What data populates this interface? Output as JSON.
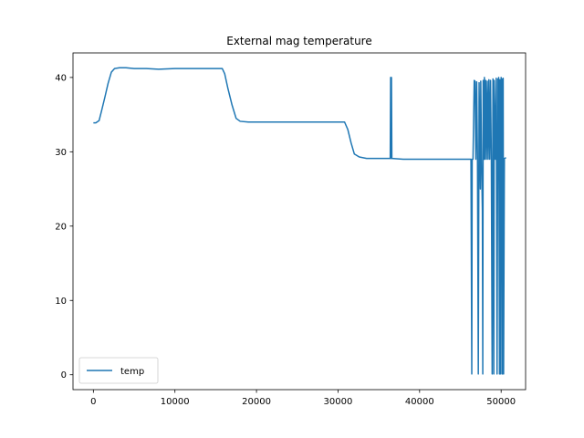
{
  "chart_data": {
    "type": "line",
    "title": "External mag temperature",
    "xlabel": "",
    "ylabel": "",
    "xlim": [
      -2500,
      53000
    ],
    "ylim": [
      -2,
      43.3
    ],
    "xticks": [
      0,
      10000,
      20000,
      30000,
      40000,
      50000
    ],
    "xtick_labels": [
      "0",
      "10000",
      "20000",
      "30000",
      "40000",
      "50000"
    ],
    "yticks": [
      0,
      10,
      20,
      30,
      40
    ],
    "ytick_labels": [
      "0",
      "10",
      "20",
      "30",
      "40"
    ],
    "grid": false,
    "legend": {
      "position": "lower-left",
      "entries": [
        "temp"
      ]
    },
    "series": [
      {
        "name": "temp",
        "color": "#1f77b4",
        "x": [
          0,
          300,
          700,
          1000,
          1400,
          1800,
          2200,
          2600,
          3200,
          4000,
          5000,
          6500,
          8000,
          10000,
          12000,
          14000,
          15800,
          16100,
          16500,
          17000,
          17500,
          18000,
          19000,
          20000,
          22000,
          25000,
          28000,
          30000,
          30800,
          31200,
          31600,
          32000,
          32600,
          33500,
          35000,
          36400,
          36450,
          36500,
          36550,
          36600,
          38000,
          40000,
          42000,
          44000,
          46000,
          46300,
          46400,
          46450,
          46550,
          46700,
          46800,
          46900,
          47000,
          47100,
          47200,
          47300,
          47400,
          47450,
          47500,
          47600,
          47700,
          47750,
          47800,
          47900,
          47950,
          48000,
          48100,
          48200,
          48300,
          48400,
          48500,
          48600,
          48700,
          48800,
          48900,
          49000,
          49050,
          49100,
          49150,
          49300,
          49400,
          49500,
          49600,
          49650,
          49700,
          49800,
          49850,
          49900,
          49950,
          50000,
          50050,
          50100,
          50150,
          50200,
          50250,
          50300,
          50400,
          50600
        ],
        "y": [
          33.9,
          33.9,
          34.2,
          35.5,
          37.3,
          39.2,
          40.7,
          41.2,
          41.3,
          41.3,
          41.2,
          41.2,
          41.1,
          41.2,
          41.2,
          41.2,
          41.2,
          40.5,
          38.5,
          36.3,
          34.5,
          34.1,
          34.0,
          34.0,
          34.0,
          34.0,
          34.0,
          34.0,
          34.0,
          33.0,
          31.2,
          29.7,
          29.3,
          29.1,
          29.1,
          29.1,
          40.0,
          29.1,
          40.0,
          29.1,
          29.0,
          29.0,
          29.0,
          29.0,
          29.0,
          29.0,
          0.1,
          29.0,
          29.0,
          39.6,
          39.5,
          29.0,
          39.4,
          29.0,
          0.1,
          39.3,
          29.0,
          25.0,
          39.5,
          29.0,
          22.0,
          0.1,
          39.6,
          29.0,
          40.0,
          29.0,
          39.6,
          29.0,
          39.5,
          29.0,
          39.7,
          29.0,
          39.6,
          29.0,
          0.1,
          39.8,
          29.0,
          0.1,
          39.6,
          29.0,
          39.9,
          0.1,
          39.8,
          29.0,
          40.0,
          0.1,
          39.7,
          29.0,
          0.1,
          40.0,
          29.0,
          39.8,
          0.1,
          29.0,
          39.9,
          0.1,
          29.1,
          29.2
        ]
      }
    ]
  }
}
